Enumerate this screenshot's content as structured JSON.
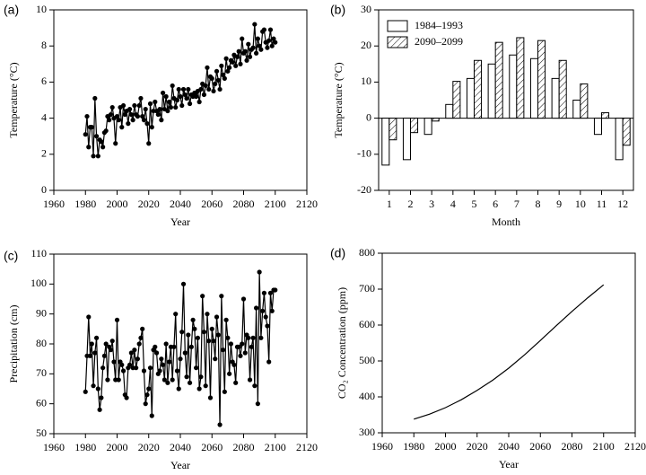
{
  "chart_data": [
    {
      "type": "line",
      "label": "(a)",
      "xlabel": "Year",
      "ylabel": "Temperature (°C)",
      "markers": true,
      "x": [
        1980,
        1981,
        1982,
        1983,
        1984,
        1985,
        1986,
        1987,
        1988,
        1989,
        1990,
        1991,
        1992,
        1993,
        1994,
        1995,
        1996,
        1997,
        1998,
        1999,
        2000,
        2001,
        2002,
        2003,
        2004,
        2005,
        2006,
        2007,
        2008,
        2009,
        2010,
        2011,
        2012,
        2013,
        2014,
        2015,
        2016,
        2017,
        2018,
        2019,
        2020,
        2021,
        2022,
        2023,
        2024,
        2025,
        2026,
        2027,
        2028,
        2029,
        2030,
        2031,
        2032,
        2033,
        2034,
        2035,
        2036,
        2037,
        2038,
        2039,
        2040,
        2041,
        2042,
        2043,
        2044,
        2045,
        2046,
        2047,
        2048,
        2049,
        2050,
        2051,
        2052,
        2053,
        2054,
        2055,
        2056,
        2057,
        2058,
        2059,
        2060,
        2061,
        2062,
        2063,
        2064,
        2065,
        2066,
        2067,
        2068,
        2069,
        2070,
        2071,
        2072,
        2073,
        2074,
        2075,
        2076,
        2077,
        2078,
        2079,
        2080,
        2081,
        2082,
        2083,
        2084,
        2085,
        2086,
        2087,
        2088,
        2089,
        2090,
        2091,
        2092,
        2093,
        2094,
        2095,
        2096,
        2097,
        2098,
        2099,
        2100
      ],
      "series": [
        {
          "color": "#000000",
          "values": [
            3.1,
            4.1,
            2.4,
            3.5,
            3.5,
            1.9,
            5.1,
            3.0,
            1.9,
            2.8,
            2.7,
            2.4,
            3.2,
            3.3,
            4.1,
            3.9,
            4.2,
            4.6,
            4.0,
            2.6,
            4.1,
            3.9,
            4.6,
            3.5,
            4.7,
            4.2,
            4.4,
            3.7,
            4.5,
            4.2,
            3.9,
            4.7,
            4.2,
            4.1,
            4.7,
            5.1,
            4.1,
            3.9,
            4.5,
            3.7,
            2.6,
            4.8,
            3.5,
            4.4,
            4.9,
            4.4,
            4.2,
            4.5,
            3.9,
            5.4,
            4.5,
            5.2,
            4.4,
            4.9,
            4.6,
            5.8,
            5.1,
            4.6,
            5.0,
            5.6,
            5.2,
            4.7,
            5.6,
            5.3,
            5.1,
            5.6,
            4.8,
            5.3,
            5.2,
            5.4,
            5.2,
            5.5,
            4.9,
            5.6,
            5.9,
            5.3,
            5.8,
            6.8,
            5.6,
            6.3,
            6.2,
            5.5,
            5.9,
            6.6,
            6.1,
            5.6,
            6.9,
            6.4,
            6.2,
            7.3,
            6.6,
            6.8,
            7.2,
            7.1,
            7.5,
            6.9,
            7.4,
            7.7,
            7.0,
            8.4,
            7.6,
            7.7,
            7.2,
            8.1,
            7.4,
            7.8,
            7.9,
            9.2,
            7.6,
            8.4,
            8.0,
            7.8,
            8.8,
            8.9,
            8.2,
            7.9,
            8.3,
            8.9,
            8.0,
            8.4,
            8.2
          ]
        }
      ],
      "xlim": [
        1960,
        2120
      ],
      "xticks": [
        1960,
        1980,
        2000,
        2020,
        2040,
        2060,
        2080,
        2100,
        2120
      ],
      "ylim": [
        0,
        10
      ],
      "yticks": [
        0,
        2,
        4,
        6,
        8,
        10
      ]
    },
    {
      "type": "bar",
      "label": "(b)",
      "xlabel": "Month",
      "ylabel": "Temperature (°C)",
      "legend": "upper left",
      "categories": [
        "1",
        "2",
        "3",
        "4",
        "5",
        "6",
        "7",
        "8",
        "9",
        "10",
        "11",
        "12"
      ],
      "series": [
        {
          "name": "1984–1993",
          "color": "#ffffff",
          "hatch": false,
          "values": [
            -13,
            -11.5,
            -4.5,
            3.8,
            11,
            15,
            17.5,
            16.5,
            11,
            5,
            -4.5,
            -11.5
          ]
        },
        {
          "name": "2090–2099",
          "color": "#ffffff",
          "hatch": true,
          "values": [
            -6,
            -4,
            -0.8,
            10.2,
            16,
            21,
            22.3,
            21.5,
            16,
            9.5,
            1.5,
            -7.5
          ]
        }
      ],
      "ylim": [
        -20,
        30
      ],
      "yticks": [
        -20,
        -10,
        0,
        10,
        20,
        30
      ]
    },
    {
      "type": "line",
      "label": "(c)",
      "xlabel": "Year",
      "ylabel": "Precipitation (cm)",
      "markers": true,
      "x": [
        1980,
        1981,
        1982,
        1983,
        1984,
        1985,
        1986,
        1987,
        1988,
        1989,
        1990,
        1991,
        1992,
        1993,
        1994,
        1995,
        1996,
        1997,
        1998,
        1999,
        2000,
        2001,
        2002,
        2003,
        2004,
        2005,
        2006,
        2007,
        2008,
        2009,
        2010,
        2011,
        2012,
        2013,
        2014,
        2015,
        2016,
        2017,
        2018,
        2019,
        2020,
        2021,
        2022,
        2023,
        2024,
        2025,
        2026,
        2027,
        2028,
        2029,
        2030,
        2031,
        2032,
        2033,
        2034,
        2035,
        2036,
        2037,
        2038,
        2039,
        2040,
        2041,
        2042,
        2043,
        2044,
        2045,
        2046,
        2047,
        2048,
        2049,
        2050,
        2051,
        2052,
        2053,
        2054,
        2055,
        2056,
        2057,
        2058,
        2059,
        2060,
        2061,
        2062,
        2063,
        2064,
        2065,
        2066,
        2067,
        2068,
        2069,
        2070,
        2071,
        2072,
        2073,
        2074,
        2075,
        2076,
        2077,
        2078,
        2079,
        2080,
        2081,
        2082,
        2083,
        2084,
        2085,
        2086,
        2087,
        2088,
        2089,
        2090,
        2091,
        2092,
        2093,
        2094,
        2095,
        2096,
        2097,
        2098,
        2099,
        2100
      ],
      "series": [
        {
          "color": "#000000",
          "values": [
            64,
            76,
            89,
            76,
            80,
            66,
            77,
            82,
            65,
            58,
            62,
            72,
            76,
            80,
            68,
            79,
            78,
            81,
            74,
            68,
            88,
            68,
            74,
            73,
            71,
            63,
            62,
            72,
            73,
            77,
            72,
            78,
            72,
            75,
            80,
            82,
            85,
            71,
            60,
            63,
            65,
            72,
            56,
            78,
            79,
            77,
            70,
            71,
            75,
            73,
            68,
            80,
            67,
            74,
            79,
            68,
            79,
            90,
            71,
            65,
            75,
            84,
            100,
            77,
            69,
            83,
            67,
            79,
            88,
            85,
            72,
            82,
            65,
            69,
            96,
            84,
            66,
            90,
            81,
            62,
            85,
            81,
            75,
            89,
            83,
            53,
            96,
            78,
            64,
            88,
            82,
            70,
            80,
            74,
            73,
            67,
            79,
            79,
            76,
            80,
            95,
            77,
            83,
            82,
            68,
            79,
            82,
            66,
            92,
            60,
            104,
            82,
            91,
            97,
            89,
            86,
            74,
            97,
            91,
            98,
            98
          ]
        }
      ],
      "xlim": [
        1960,
        2120
      ],
      "xticks": [
        1960,
        1980,
        2000,
        2020,
        2040,
        2060,
        2080,
        2100,
        2120
      ],
      "ylim": [
        50,
        110
      ],
      "yticks": [
        50,
        60,
        70,
        80,
        90,
        100,
        110
      ]
    },
    {
      "type": "line",
      "label": "(d)",
      "xlabel": "Year",
      "ylabel": "CO₂ Concentration (ppm)",
      "markers": false,
      "x": [
        1980,
        1990,
        2000,
        2010,
        2020,
        2030,
        2040,
        2050,
        2060,
        2070,
        2080,
        2090,
        2100
      ],
      "series": [
        {
          "color": "#000000",
          "values": [
            338,
            352,
            370,
            392,
            418,
            447,
            480,
            517,
            557,
            598,
            638,
            676,
            712
          ]
        }
      ],
      "xlim": [
        1960,
        2120
      ],
      "xticks": [
        1960,
        1980,
        2000,
        2020,
        2040,
        2060,
        2080,
        2100,
        2120
      ],
      "ylim": [
        300,
        800
      ],
      "yticks": [
        300,
        400,
        500,
        600,
        700,
        800
      ]
    }
  ]
}
